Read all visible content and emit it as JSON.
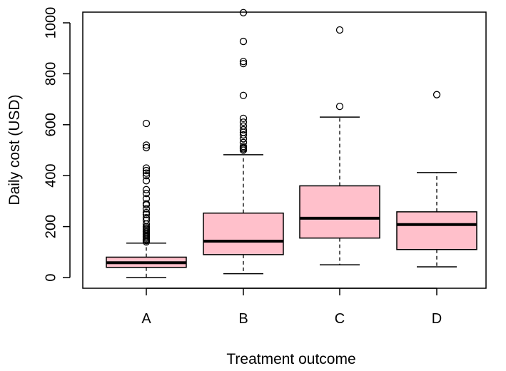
{
  "chart_data": {
    "type": "boxplot",
    "title": "",
    "xlabel": "Treatment outcome",
    "ylabel": "Daily cost (USD)",
    "ylim": [
      -40,
      1040
    ],
    "yticks": [
      0,
      200,
      400,
      600,
      800,
      1000
    ],
    "grid": false,
    "legend": "none",
    "box_color": "#ffc0cb",
    "line_color": "#000000",
    "categories": [
      "A",
      "B",
      "C",
      "D"
    ],
    "boxes": [
      {
        "name": "A",
        "whisker_low": 0,
        "q1": 40,
        "median": 58,
        "q3": 80,
        "whisker_high": 135,
        "outliers": [
          140,
          145,
          150,
          155,
          160,
          165,
          170,
          175,
          180,
          185,
          190,
          195,
          200,
          210,
          225,
          235,
          248,
          255,
          270,
          285,
          290,
          310,
          330,
          345,
          380,
          400,
          410,
          420,
          430,
          510,
          520,
          605
        ]
      },
      {
        "name": "B",
        "whisker_low": 15,
        "q1": 90,
        "median": 143,
        "q3": 253,
        "whisker_high": 482,
        "outliers": [
          500,
          505,
          510,
          515,
          530,
          545,
          560,
          570,
          580,
          595,
          610,
          625,
          715,
          840,
          848,
          927,
          1040
        ]
      },
      {
        "name": "C",
        "whisker_low": 50,
        "q1": 155,
        "median": 233,
        "q3": 360,
        "whisker_high": 630,
        "outliers": [
          672,
          972
        ]
      },
      {
        "name": "D",
        "whisker_low": 42,
        "q1": 110,
        "median": 208,
        "q3": 258,
        "whisker_high": 412,
        "outliers": [
          718
        ]
      }
    ]
  }
}
